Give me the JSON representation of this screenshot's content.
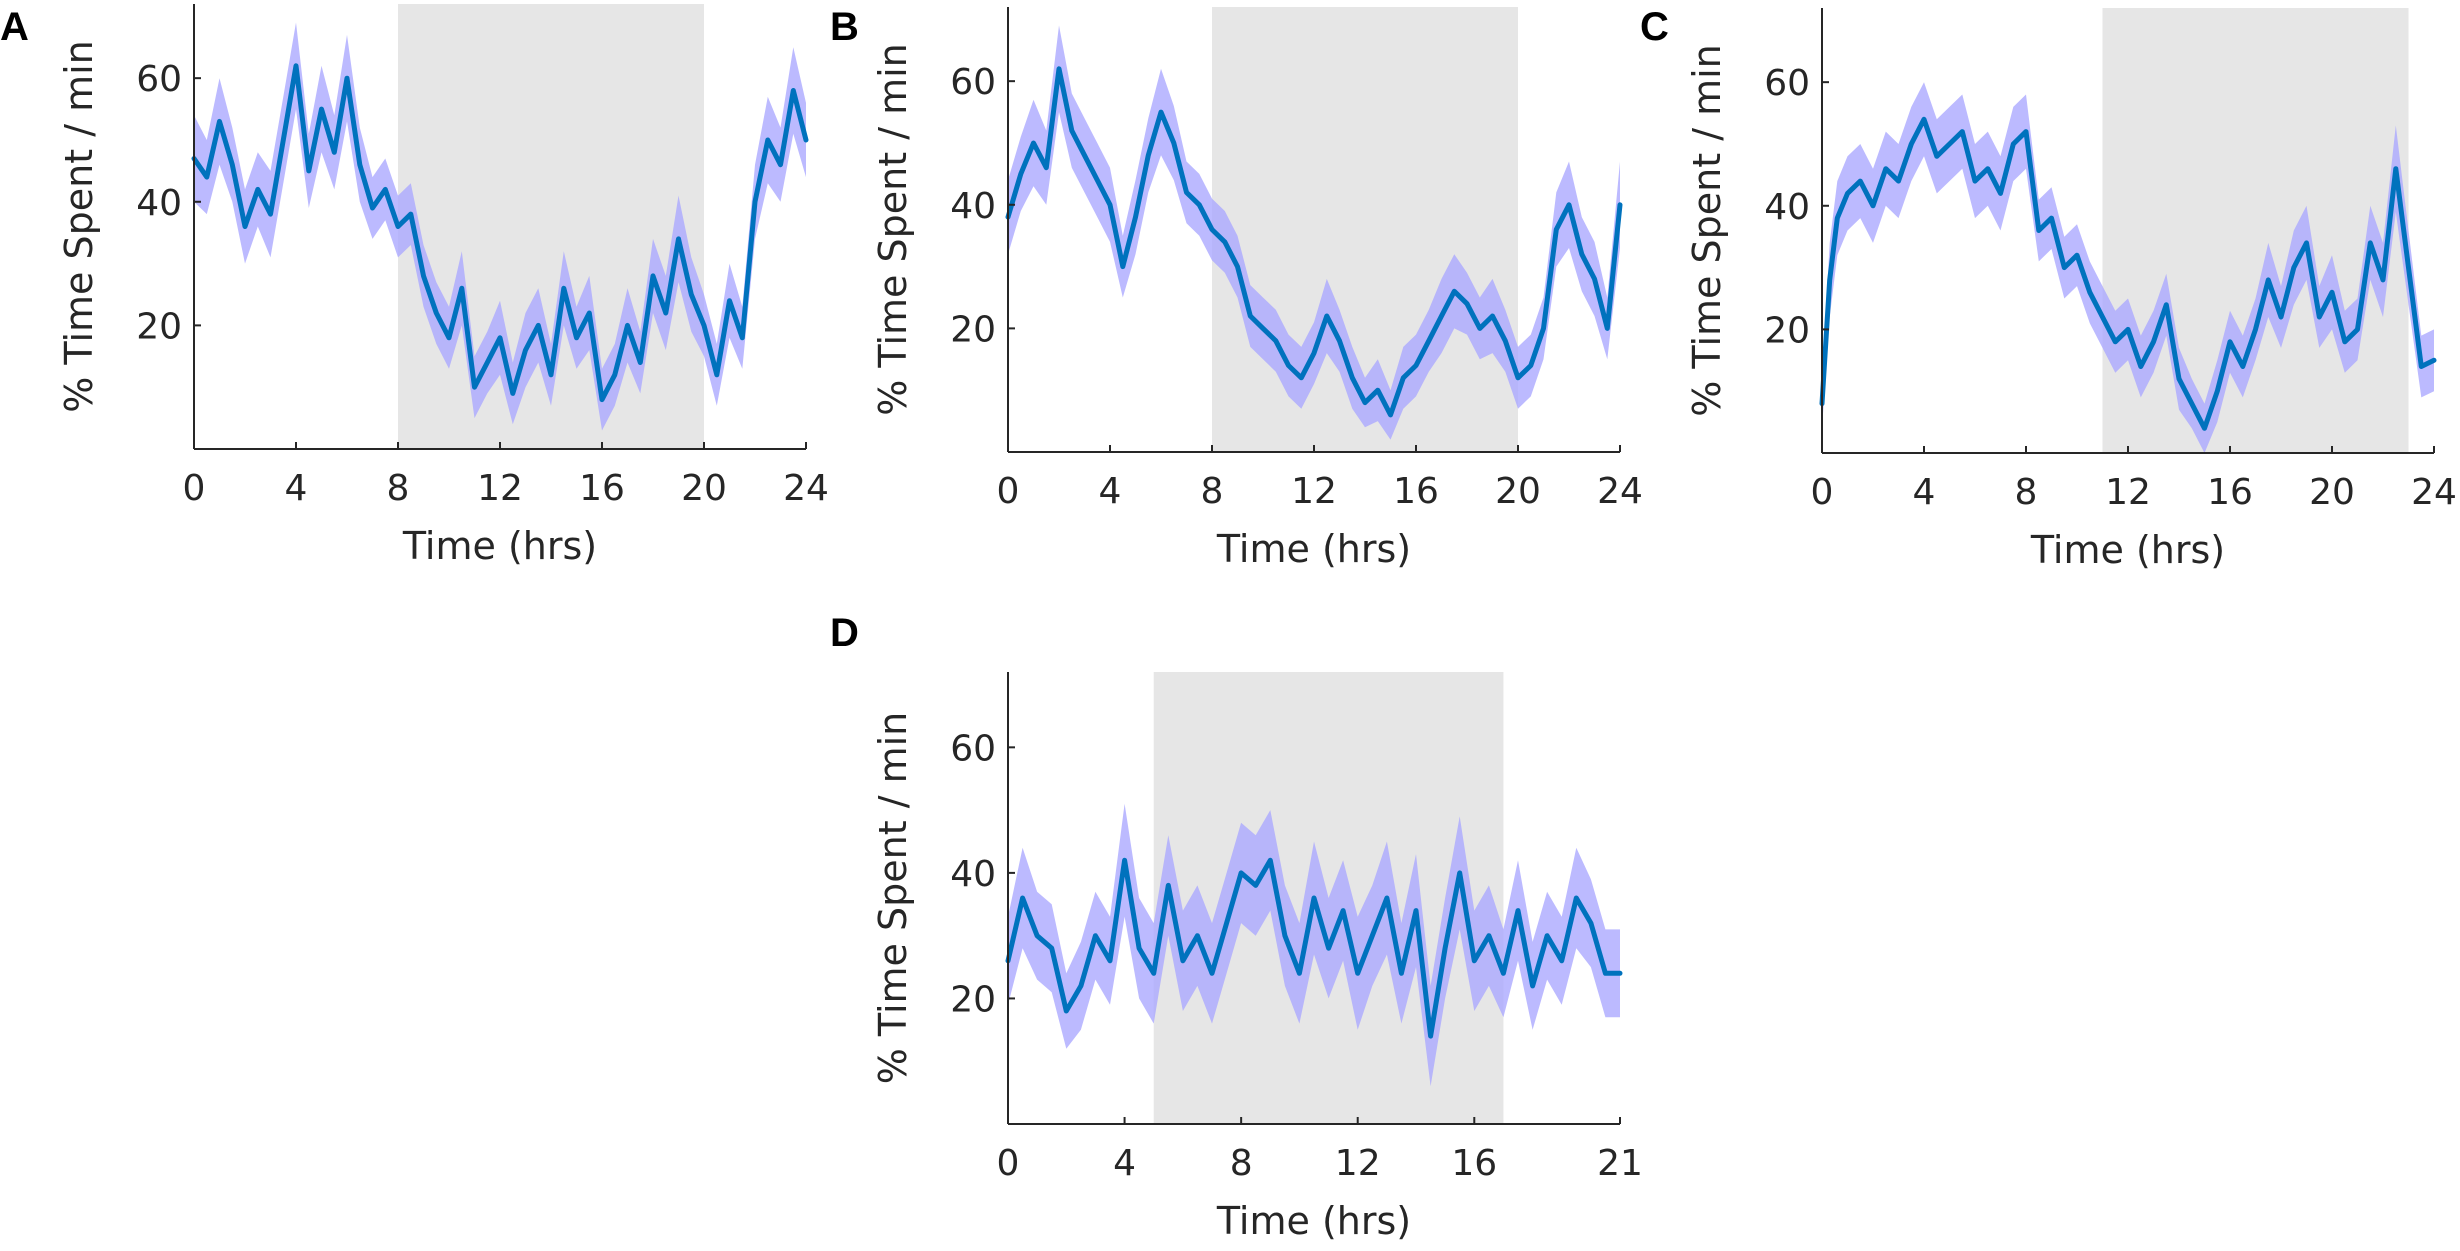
{
  "colors": {
    "mean_line": "#0072bd",
    "error_band": "#a9a6ff",
    "dark_period": "#e6e6e6",
    "axes": "#262626"
  },
  "chart_data": [
    {
      "panel": "A",
      "type": "line",
      "xlabel": "Time (hrs)",
      "ylabel": "% Time Spent / min",
      "xlim": [
        0,
        24
      ],
      "ylim": [
        0,
        72
      ],
      "xticks": [
        0,
        4,
        8,
        12,
        16,
        20,
        24
      ],
      "yticks": [
        20,
        40,
        60
      ],
      "shaded_region": [
        8,
        20
      ],
      "series": [
        {
          "name": "mean",
          "x": [
            0,
            0.5,
            1,
            1.5,
            2,
            2.5,
            3,
            3.5,
            4,
            4.5,
            5,
            5.5,
            6,
            6.5,
            7,
            7.5,
            8,
            8.5,
            9,
            9.5,
            10,
            10.5,
            11,
            11.5,
            12,
            12.5,
            13,
            13.5,
            14,
            14.5,
            15,
            15.5,
            16,
            16.5,
            17,
            17.5,
            18,
            18.5,
            19,
            19.5,
            20,
            20.5,
            21,
            21.5,
            22,
            22.5,
            23,
            23.5,
            24
          ],
          "y": [
            47,
            44,
            53,
            46,
            36,
            42,
            38,
            50,
            62,
            45,
            55,
            48,
            60,
            46,
            39,
            42,
            36,
            38,
            28,
            22,
            18,
            26,
            10,
            14,
            18,
            9,
            16,
            20,
            12,
            26,
            18,
            22,
            8,
            12,
            20,
            14,
            28,
            22,
            34,
            25,
            20,
            12,
            24,
            18,
            40,
            50,
            46,
            58,
            50
          ],
          "err": [
            7,
            6,
            7,
            6,
            6,
            6,
            7,
            7,
            7,
            6,
            7,
            6,
            7,
            6,
            5,
            5,
            5,
            5,
            5,
            5,
            5,
            6,
            5,
            5,
            6,
            5,
            6,
            6,
            5,
            6,
            5,
            6,
            5,
            5,
            6,
            5,
            6,
            6,
            7,
            6,
            5,
            5,
            6,
            5,
            6,
            7,
            6,
            7,
            6
          ]
        }
      ]
    },
    {
      "panel": "B",
      "type": "line",
      "xlabel": "Time (hrs)",
      "ylabel": "% Time Spent / min",
      "xlim": [
        0,
        24
      ],
      "ylim": [
        0,
        72
      ],
      "xticks": [
        0,
        4,
        8,
        12,
        16,
        20,
        24
      ],
      "yticks": [
        20,
        40,
        60
      ],
      "shaded_region": [
        8,
        20
      ],
      "series": [
        {
          "name": "mean",
          "x": [
            0,
            0.5,
            1,
            1.5,
            2,
            2.5,
            3,
            3.5,
            4,
            4.5,
            5,
            5.5,
            6,
            6.5,
            7,
            7.5,
            8,
            8.5,
            9,
            9.5,
            10,
            10.5,
            11,
            11.5,
            12,
            12.5,
            13,
            13.5,
            14,
            14.5,
            15,
            15.5,
            16,
            16.5,
            17,
            17.5,
            18,
            18.5,
            19,
            19.5,
            20,
            20.5,
            21,
            21.5,
            22,
            22.5,
            23,
            23.5,
            24
          ],
          "y": [
            38,
            45,
            50,
            46,
            62,
            52,
            48,
            44,
            40,
            30,
            38,
            48,
            55,
            50,
            42,
            40,
            36,
            34,
            30,
            22,
            20,
            18,
            14,
            12,
            16,
            22,
            18,
            12,
            8,
            10,
            6,
            12,
            14,
            18,
            22,
            26,
            24,
            20,
            22,
            18,
            12,
            14,
            20,
            36,
            40,
            32,
            28,
            20,
            40
          ],
          "err": [
            6,
            6,
            7,
            6,
            7,
            6,
            6,
            6,
            6,
            5,
            6,
            6,
            7,
            6,
            5,
            5,
            5,
            5,
            5,
            5,
            5,
            5,
            5,
            5,
            5,
            6,
            5,
            5,
            4,
            5,
            4,
            5,
            5,
            5,
            6,
            6,
            5,
            5,
            6,
            5,
            5,
            5,
            5,
            6,
            7,
            6,
            6,
            5,
            7
          ]
        }
      ]
    },
    {
      "panel": "C",
      "type": "line",
      "xlabel": "Time (hrs)",
      "ylabel": "% Time Spent / min",
      "xlim": [
        0,
        24
      ],
      "ylim": [
        0,
        72
      ],
      "xticks": [
        0,
        4,
        8,
        12,
        16,
        20,
        24
      ],
      "yticks": [
        20,
        40,
        60
      ],
      "shaded_region": [
        11,
        23
      ],
      "series": [
        {
          "name": "mean",
          "x": [
            0,
            0.3,
            0.6,
            1,
            1.5,
            2,
            2.5,
            3,
            3.5,
            4,
            4.5,
            5,
            5.5,
            6,
            6.5,
            7,
            7.5,
            8,
            8.5,
            9,
            9.5,
            10,
            10.5,
            11,
            11.5,
            12,
            12.5,
            13,
            13.5,
            14,
            14.5,
            15,
            15.5,
            16,
            16.5,
            17,
            17.5,
            18,
            18.5,
            19,
            19.5,
            20,
            20.5,
            21,
            21.5,
            22,
            22.5,
            23,
            23.5,
            24
          ],
          "y": [
            8,
            28,
            38,
            42,
            44,
            40,
            46,
            44,
            50,
            54,
            48,
            50,
            52,
            44,
            46,
            42,
            50,
            52,
            36,
            38,
            30,
            32,
            26,
            22,
            18,
            20,
            14,
            18,
            24,
            12,
            8,
            4,
            10,
            18,
            14,
            20,
            28,
            22,
            30,
            34,
            22,
            26,
            18,
            20,
            34,
            28,
            46,
            30,
            14,
            15
          ],
          "err": [
            4,
            6,
            6,
            6,
            6,
            6,
            6,
            6,
            6,
            6,
            6,
            6,
            6,
            6,
            6,
            6,
            6,
            6,
            5,
            5,
            5,
            5,
            5,
            5,
            5,
            5,
            5,
            5,
            5,
            5,
            4,
            4,
            5,
            5,
            5,
            5,
            6,
            5,
            6,
            6,
            5,
            6,
            5,
            5,
            6,
            6,
            7,
            6,
            5,
            5
          ]
        }
      ]
    },
    {
      "panel": "D",
      "type": "line",
      "xlabel": "Time (hrs)",
      "ylabel": "% Time Spent / min",
      "xlim": [
        0,
        21
      ],
      "ylim": [
        0,
        72
      ],
      "xticks": [
        0,
        4,
        8,
        12,
        16,
        21
      ],
      "yticks": [
        20,
        40,
        60
      ],
      "shaded_region": [
        5,
        17
      ],
      "series": [
        {
          "name": "mean",
          "x": [
            0,
            0.5,
            1,
            1.5,
            2,
            2.5,
            3,
            3.5,
            4,
            4.5,
            5,
            5.5,
            6,
            6.5,
            7,
            7.5,
            8,
            8.5,
            9,
            9.5,
            10,
            10.5,
            11,
            11.5,
            12,
            12.5,
            13,
            13.5,
            14,
            14.5,
            15,
            15.5,
            16,
            16.5,
            17,
            17.5,
            18,
            18.5,
            19,
            19.5,
            20,
            20.5,
            21
          ],
          "y": [
            26,
            36,
            30,
            28,
            18,
            22,
            30,
            26,
            42,
            28,
            24,
            38,
            26,
            30,
            24,
            32,
            40,
            38,
            42,
            30,
            24,
            36,
            28,
            34,
            24,
            30,
            36,
            24,
            34,
            14,
            28,
            40,
            26,
            30,
            24,
            34,
            22,
            30,
            26,
            36,
            32,
            24,
            24
          ],
          "err": [
            7,
            8,
            7,
            7,
            6,
            7,
            7,
            7,
            9,
            8,
            8,
            8,
            8,
            8,
            8,
            8,
            8,
            8,
            8,
            8,
            8,
            9,
            8,
            8,
            9,
            8,
            9,
            8,
            9,
            8,
            8,
            9,
            8,
            8,
            7,
            8,
            7,
            7,
            7,
            8,
            7,
            7,
            7
          ]
        }
      ]
    }
  ]
}
